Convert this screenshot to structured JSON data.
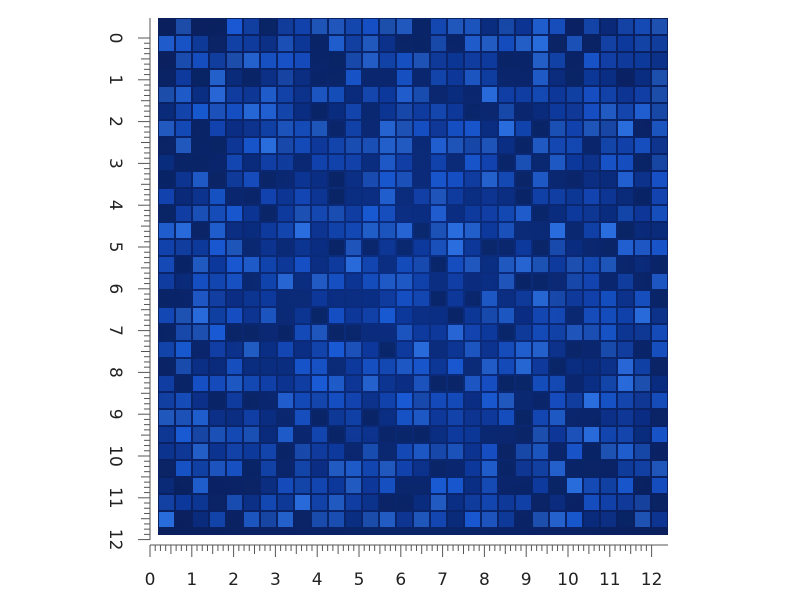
{
  "rulers": {
    "left": {
      "labels": [
        0,
        1,
        2,
        3,
        4,
        5,
        6,
        7,
        8,
        9,
        10,
        11,
        12
      ]
    },
    "bottom": {
      "labels": [
        0,
        1,
        2,
        3,
        4,
        5,
        6,
        7,
        8,
        9,
        10,
        11,
        12
      ]
    }
  }
}
